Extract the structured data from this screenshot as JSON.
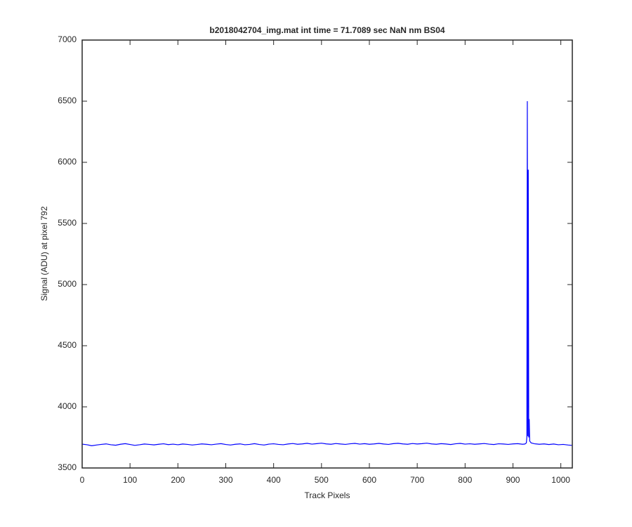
{
  "chart_data": {
    "type": "line",
    "title": "b2018042704_img.mat int time = 71.7089 sec  NaN nm BS04",
    "xlabel": "Track Pixels",
    "ylabel": "Signal (ADU) at pixel 792",
    "color": "#0000ff",
    "x": [
      0,
      10,
      20,
      30,
      40,
      50,
      60,
      70,
      80,
      90,
      100,
      110,
      120,
      130,
      140,
      150,
      160,
      170,
      180,
      190,
      200,
      210,
      220,
      230,
      240,
      250,
      260,
      270,
      280,
      290,
      300,
      310,
      320,
      330,
      340,
      350,
      360,
      370,
      380,
      390,
      400,
      410,
      420,
      430,
      440,
      450,
      460,
      470,
      480,
      490,
      500,
      510,
      520,
      530,
      540,
      550,
      560,
      570,
      580,
      590,
      600,
      610,
      620,
      630,
      640,
      650,
      660,
      670,
      680,
      690,
      700,
      710,
      720,
      730,
      740,
      750,
      760,
      770,
      780,
      790,
      800,
      810,
      820,
      830,
      840,
      850,
      860,
      870,
      880,
      890,
      900,
      910,
      920,
      925,
      928,
      929,
      930,
      931,
      932,
      933,
      934,
      935,
      938,
      945,
      955,
      965,
      975,
      985,
      995,
      1005,
      1015,
      1023
    ],
    "values": [
      3695,
      3690,
      3682,
      3688,
      3693,
      3697,
      3690,
      3686,
      3694,
      3699,
      3692,
      3685,
      3690,
      3696,
      3693,
      3689,
      3694,
      3698,
      3691,
      3695,
      3690,
      3696,
      3693,
      3688,
      3692,
      3697,
      3694,
      3690,
      3695,
      3699,
      3692,
      3688,
      3694,
      3697,
      3690,
      3693,
      3699,
      3692,
      3688,
      3695,
      3698,
      3693,
      3690,
      3696,
      3700,
      3694,
      3697,
      3702,
      3695,
      3699,
      3703,
      3697,
      3694,
      3700,
      3696,
      3693,
      3698,
      3701,
      3695,
      3699,
      3694,
      3697,
      3701,
      3696,
      3693,
      3699,
      3702,
      3697,
      3694,
      3700,
      3696,
      3699,
      3703,
      3697,
      3694,
      3699,
      3696,
      3692,
      3698,
      3701,
      3695,
      3698,
      3694,
      3697,
      3700,
      3695,
      3692,
      3698,
      3696,
      3693,
      3697,
      3699,
      3694,
      3696,
      3705,
      3750,
      6500,
      3760,
      5940,
      3750,
      3900,
      3720,
      3705,
      3698,
      3694,
      3697,
      3692,
      3696,
      3690,
      3693,
      3688,
      3685
    ],
    "xlim": [
      0,
      1024
    ],
    "ylim": [
      3500,
      7000
    ],
    "xticks": [
      0,
      100,
      200,
      300,
      400,
      500,
      600,
      700,
      800,
      900,
      1000
    ],
    "yticks": [
      3500,
      4000,
      4500,
      5000,
      5500,
      6000,
      6500,
      7000
    ]
  }
}
